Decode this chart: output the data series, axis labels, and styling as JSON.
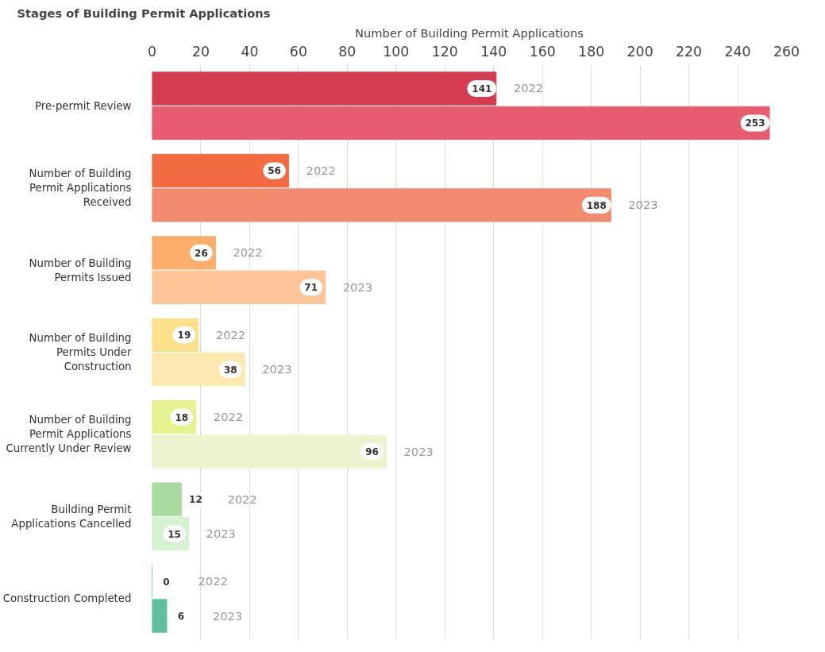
{
  "chart_data": {
    "type": "bar",
    "orientation": "horizontal",
    "xlabel": "Number of Building Permit Applications",
    "ylabel": "Stages of Building Permit Applications",
    "categories": [
      "Pre-permit Review",
      "Number of Building Permit Applications Received",
      "Number of Building Permits Issued",
      "Number of Building Permits Under Construction",
      "Number of Building Permit Applications Currently Under Review",
      "Building Permit Applications Cancelled",
      "Construction Completed"
    ],
    "series": [
      {
        "name": "2022",
        "values": [
          141,
          56,
          26,
          19,
          18,
          12,
          0
        ],
        "colors": [
          "#d63c4f",
          "#f26b43",
          "#fdae6b",
          "#fde08a",
          "#e6f28f",
          "#a8dba0",
          "#5fbf9f"
        ]
      },
      {
        "name": "2023",
        "values": [
          253,
          188,
          71,
          38,
          96,
          15,
          6
        ],
        "colors": [
          "#e85c70",
          "#f38b6f",
          "#fdc597",
          "#fde9b0",
          "#eef3cf",
          "#d5f1d0",
          "#5fbf9f"
        ]
      }
    ],
    "xlim": [
      0,
      260
    ],
    "xticks": [
      0,
      20,
      40,
      60,
      80,
      100,
      120,
      140,
      160,
      180,
      200,
      220,
      240,
      260
    ],
    "grid": "x",
    "data_labels": true
  }
}
